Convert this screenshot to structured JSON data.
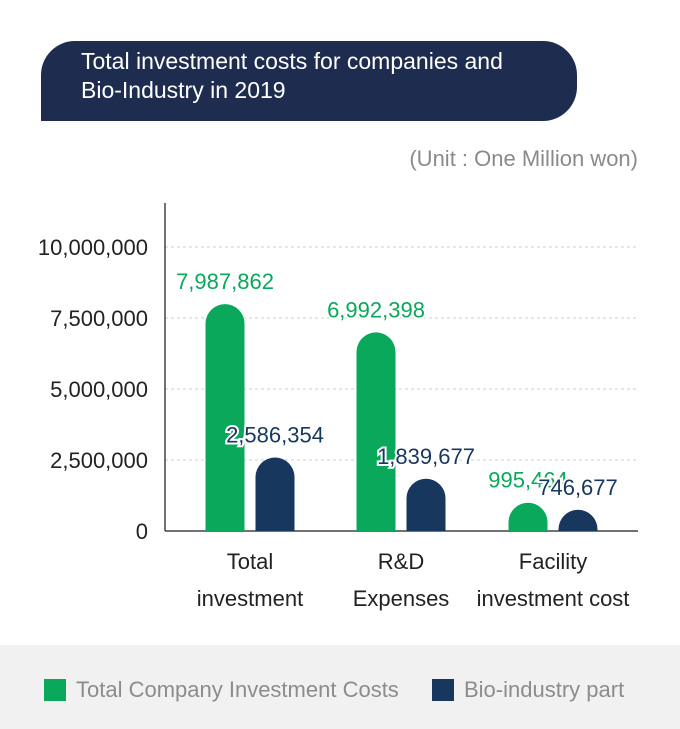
{
  "title": [
    "Total investment costs for companies and",
    "Bio-Industry in 2019"
  ],
  "unit": "(Unit : One Million won)",
  "colors": {
    "green": "#0aa85a",
    "navy": "#17375e",
    "banner": "#1e2d4f"
  },
  "chart_data": {
    "type": "bar",
    "categories": [
      [
        "Total",
        "investment"
      ],
      [
        "R&D",
        "Expenses"
      ],
      [
        "Facility",
        "investment cost"
      ]
    ],
    "series": [
      {
        "name": "Total Company Investment Costs",
        "color": "#0aa85a",
        "values": [
          7987862,
          6992398,
          995464
        ],
        "labels": [
          "7,987,862",
          "6,992,398",
          "995,464"
        ]
      },
      {
        "name": "Bio-industry part",
        "color": "#17375e",
        "values": [
          2586354,
          1839677,
          746677
        ],
        "labels": [
          "2,586,354",
          "1,839,677",
          "746,677"
        ]
      }
    ],
    "ylim": [
      0,
      11500000
    ],
    "yticks": [
      0,
      2500000,
      5000000,
      7500000,
      10000000
    ],
    "ytick_labels": [
      "0",
      "2,500,000",
      "5,000,000",
      "7,500,000",
      "10,000,000"
    ],
    "grid": true,
    "legend_position": "bottom"
  }
}
